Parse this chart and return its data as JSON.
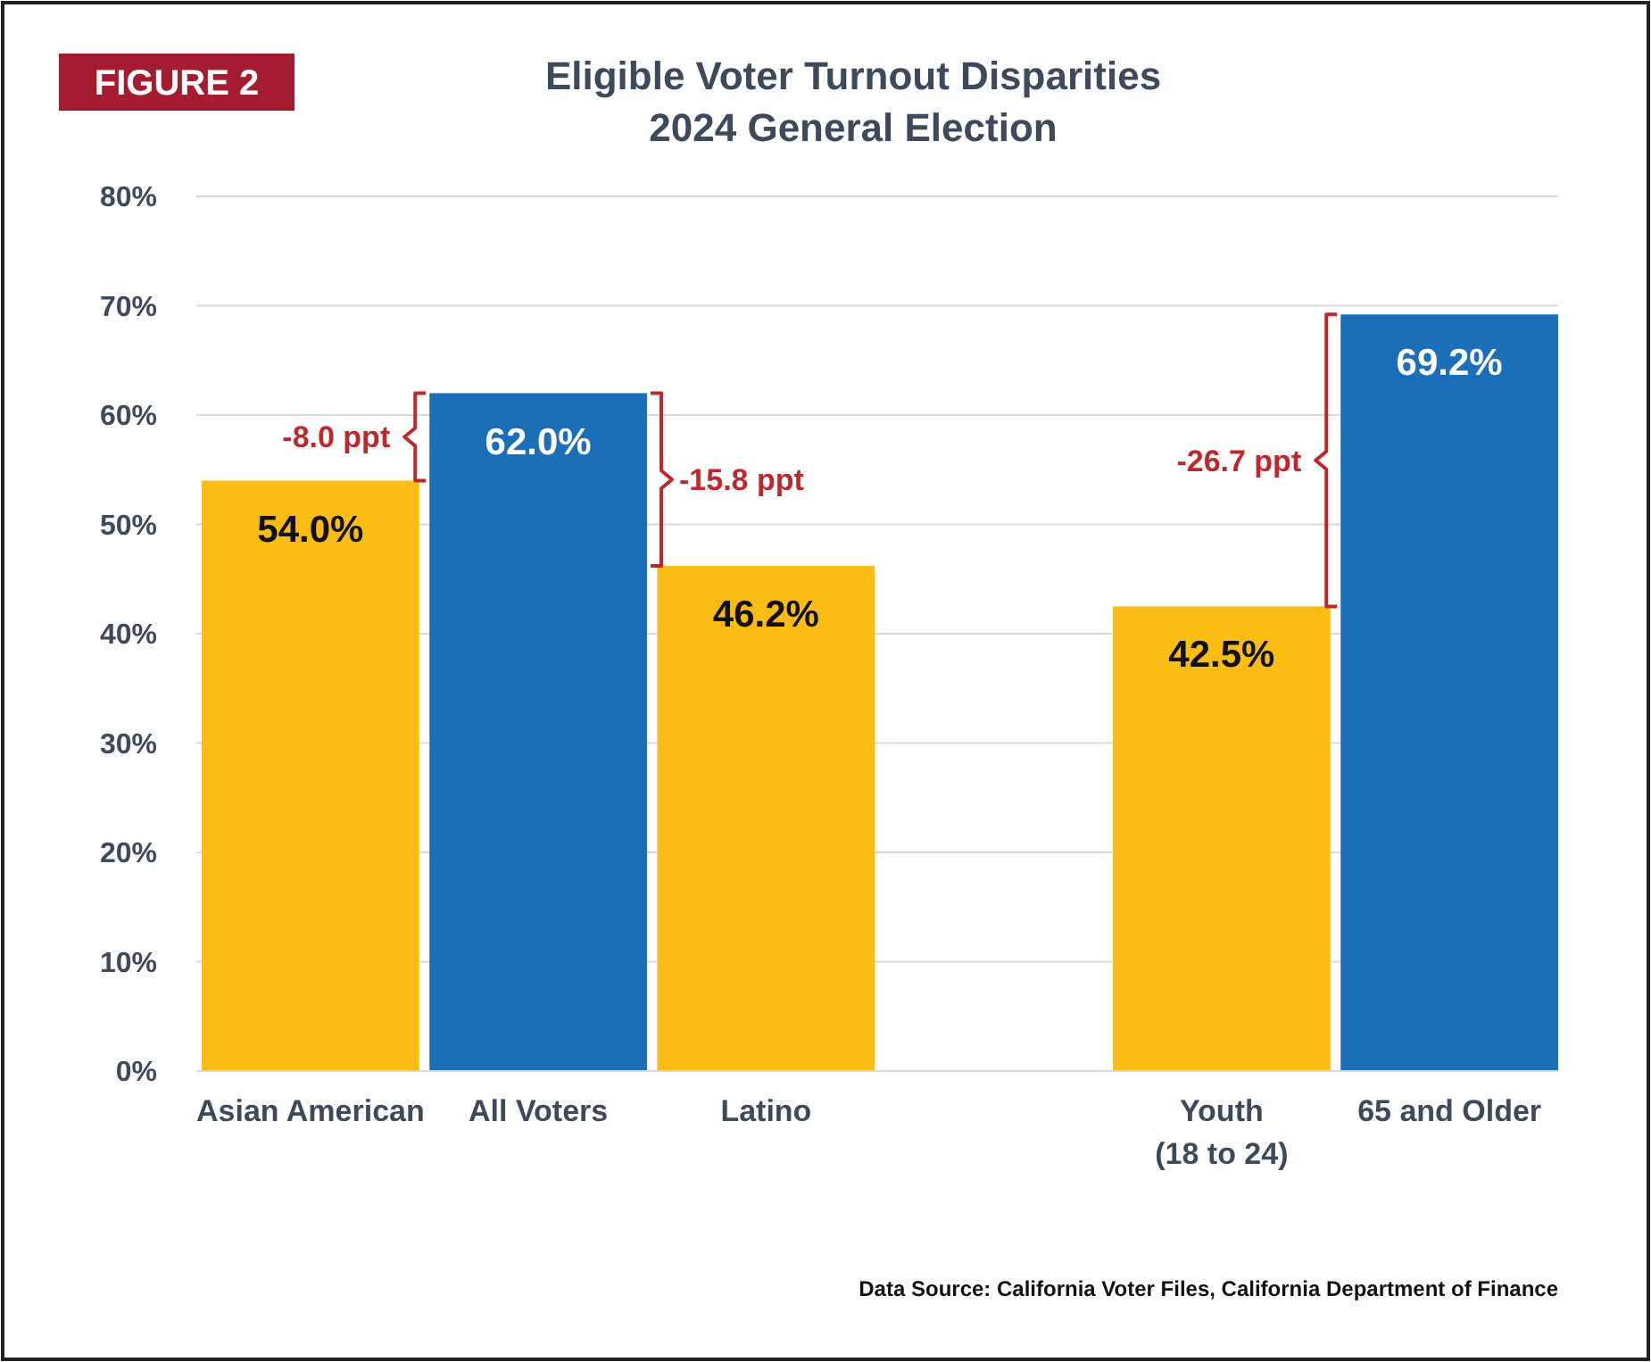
{
  "chart_data": {
    "type": "bar",
    "title": "Eligible Voter Turnout Disparities\n2024 General Election",
    "categories": [
      "Asian American",
      "All Voters",
      "Latino",
      null,
      "Youth (18 to 24)",
      "65 and Older"
    ],
    "values": [
      54.0,
      62.0,
      46.2,
      null,
      42.5,
      69.2
    ],
    "colors": [
      "#fbbd13",
      "#1b6fb9",
      "#fbbd13",
      null,
      "#fbbd13",
      "#1b6fb9"
    ],
    "value_labels": [
      "54.0%",
      "62.0%",
      "46.2%",
      null,
      "42.5%",
      "69.2%"
    ],
    "ylim": [
      0,
      80
    ],
    "yticks": [
      {
        "value": 0,
        "label": "0%"
      },
      {
        "value": 10,
        "label": "10%"
      },
      {
        "value": 20,
        "label": "20%"
      },
      {
        "value": 30,
        "label": "30%"
      },
      {
        "value": 40,
        "label": "40%"
      },
      {
        "value": 50,
        "label": "50%"
      },
      {
        "value": 60,
        "label": "60%"
      },
      {
        "value": 70,
        "label": "70%"
      },
      {
        "value": 80,
        "label": "80%"
      }
    ],
    "grid": "y",
    "annotations": [
      "FIGURE 2",
      "-8.0 ppt",
      "-15.8 ppt",
      "-26.7 ppt",
      "Data Source: California Voter Files, California Department of Finance"
    ]
  }
}
